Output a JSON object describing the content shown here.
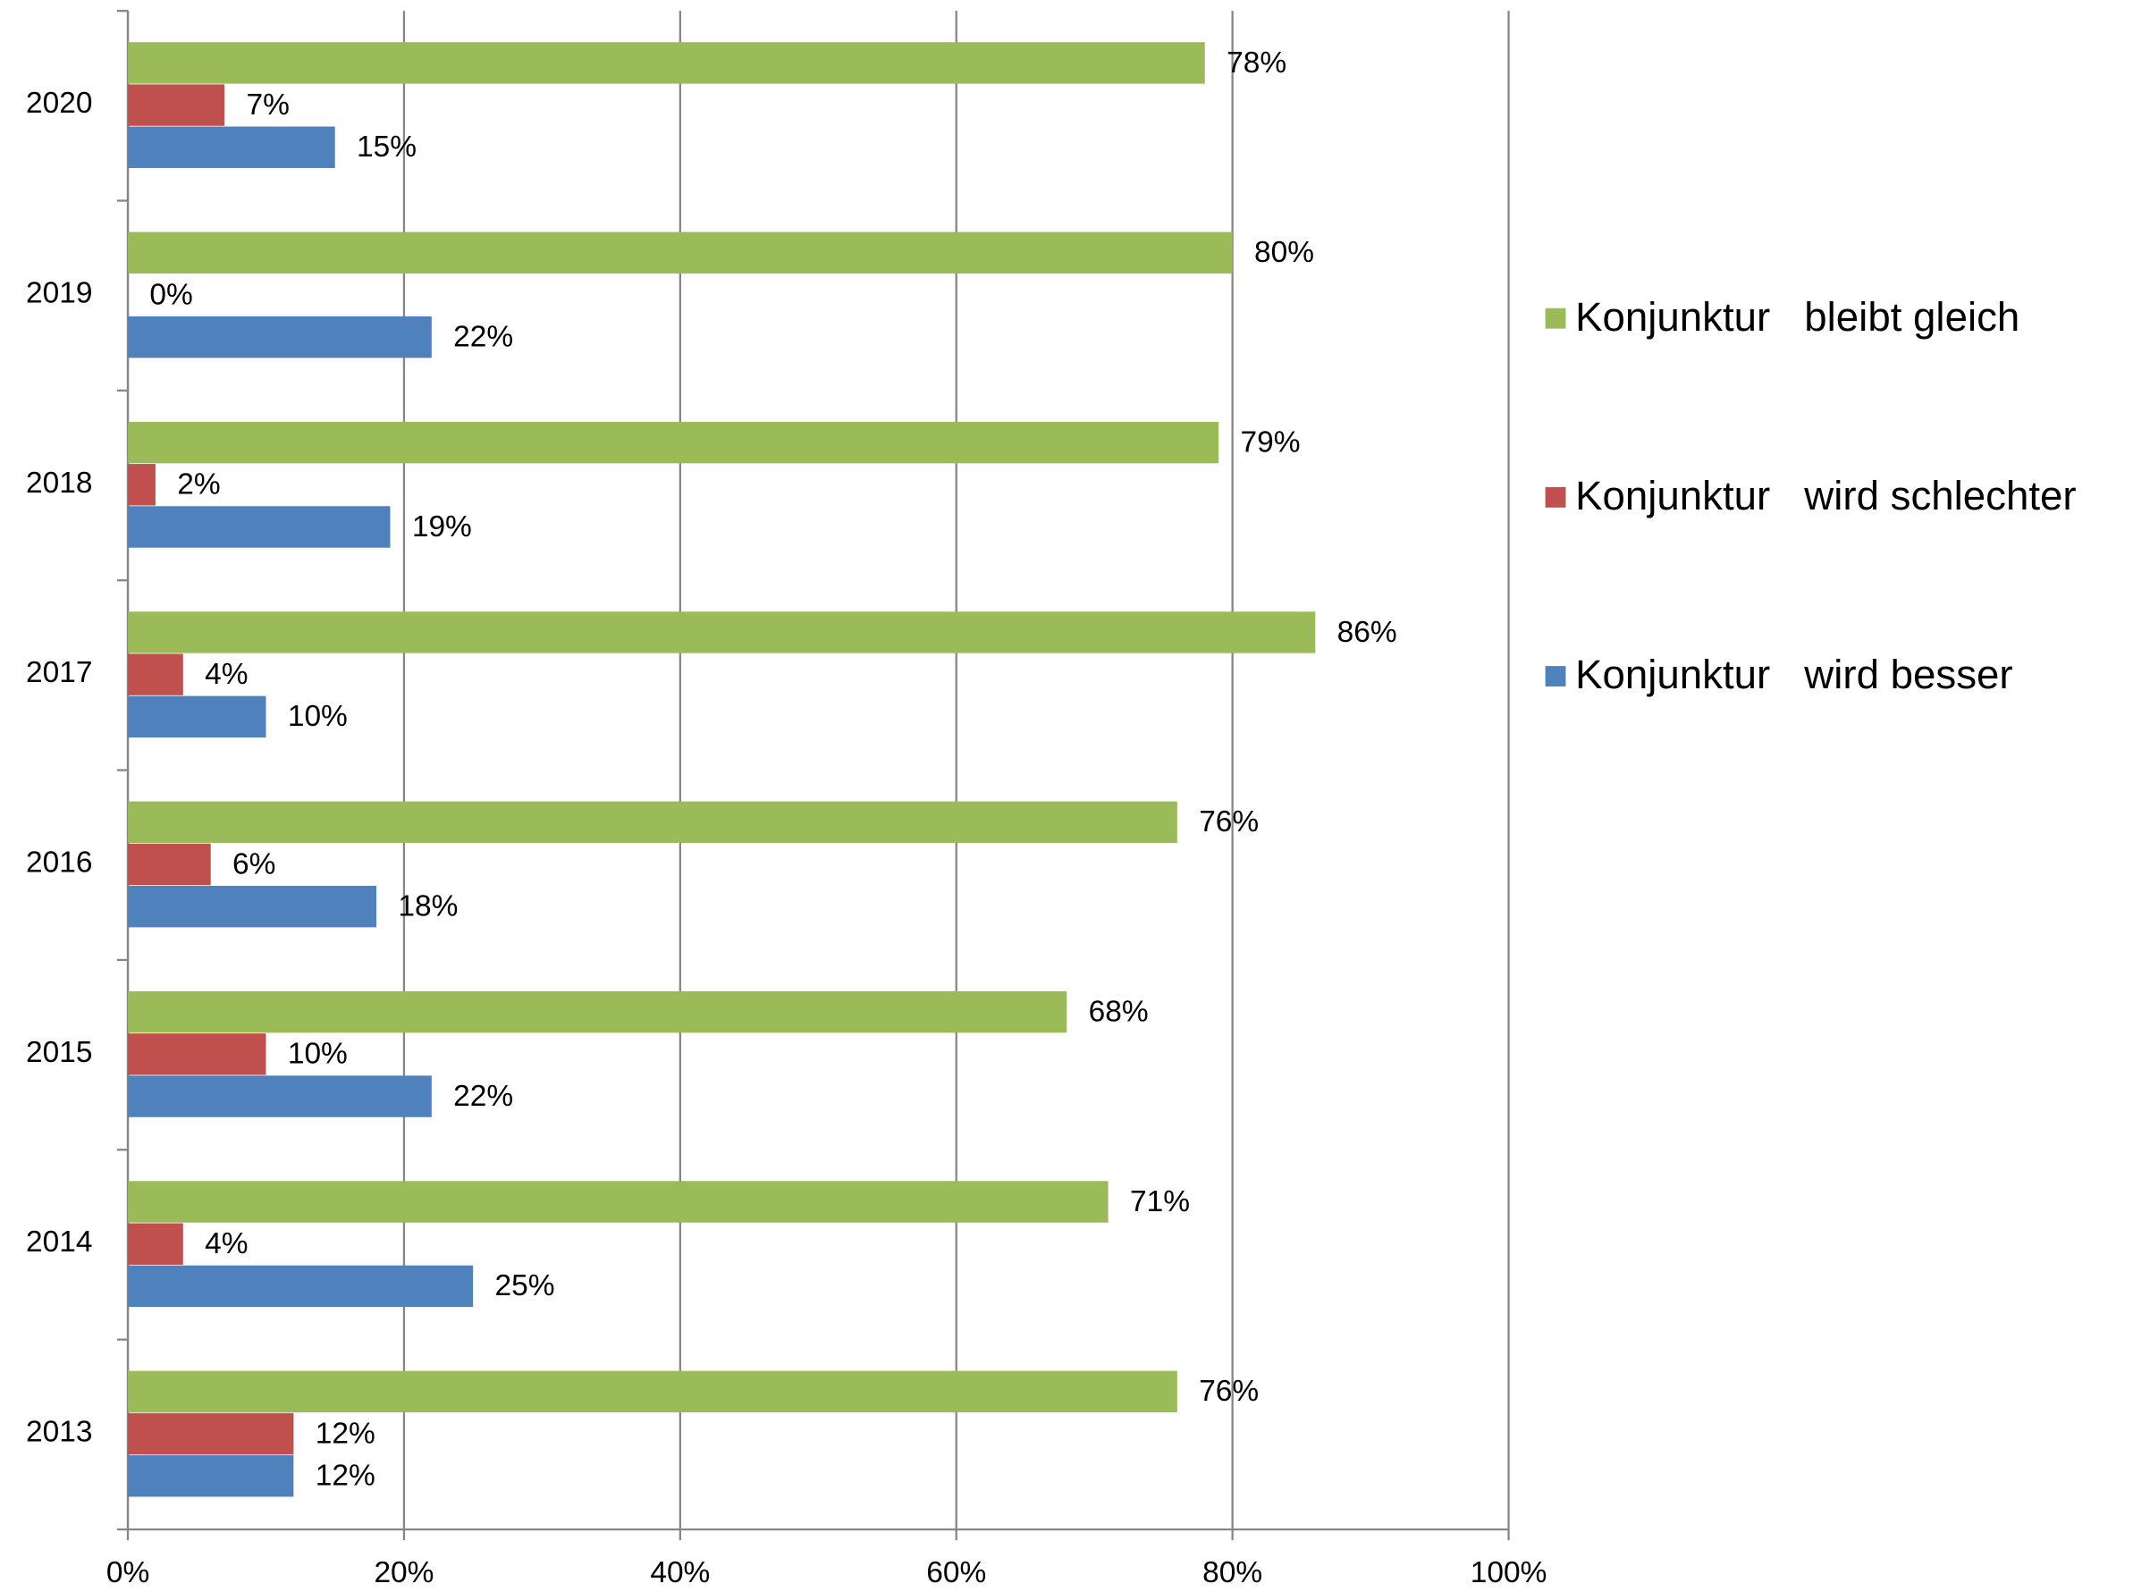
{
  "chart_data": {
    "type": "hbar",
    "categories": [
      "2020",
      "2019",
      "2018",
      "2017",
      "2016",
      "2015",
      "2014",
      "2013"
    ],
    "series": [
      {
        "name": "Konjunktur   bleibt gleich",
        "color": "#9bbb59",
        "values": [
          78,
          80,
          79,
          86,
          76,
          68,
          71,
          76
        ],
        "value_labels": [
          "78%",
          "80%",
          "79%",
          "86%",
          "76%",
          "68%",
          "71%",
          "76%"
        ]
      },
      {
        "name": "Konjunktur   wird schlechter",
        "color": "#c0504d",
        "values": [
          7,
          0,
          2,
          4,
          6,
          10,
          4,
          12
        ],
        "value_labels": [
          "7%",
          "0%",
          "2%",
          "4%",
          "6%",
          "10%",
          "4%",
          "12%"
        ]
      },
      {
        "name": "Konjunktur   wird besser",
        "color": "#4f81bd",
        "values": [
          15,
          22,
          19,
          10,
          18,
          22,
          25,
          12
        ],
        "value_labels": [
          "15%",
          "22%",
          "19%",
          "10%",
          "18%",
          "22%",
          "25%",
          "12%"
        ]
      }
    ],
    "xlim": [
      0,
      100
    ],
    "xticks": [
      {
        "value": 0,
        "label": "0%"
      },
      {
        "value": 20,
        "label": "20%"
      },
      {
        "value": 40,
        "label": "40%"
      },
      {
        "value": 60,
        "label": "60%"
      },
      {
        "value": 80,
        "label": "80%"
      },
      {
        "value": 100,
        "label": "100%"
      }
    ],
    "grid": true,
    "legend": "right"
  }
}
